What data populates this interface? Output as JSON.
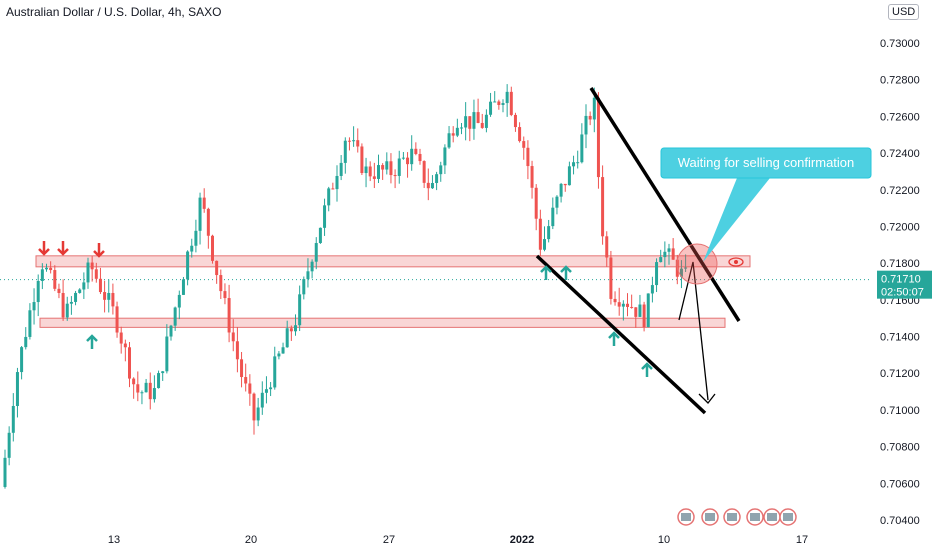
{
  "chart_data": {
    "type": "candlestick",
    "title": "Australian Dollar / U.S. Dollar, 4h, SAXO",
    "currency": "USD",
    "y_ticks": [
      "0.73000",
      "0.72800",
      "0.72600",
      "0.72400",
      "0.72200",
      "0.72000",
      "0.71800",
      "0.71600",
      "0.71400",
      "0.71200",
      "0.71000",
      "0.70800",
      "0.70600",
      "0.70400"
    ],
    "ylim": [
      0.7034,
      0.7318
    ],
    "x_ticks": [
      {
        "label": "13",
        "bold": false
      },
      {
        "label": "20",
        "bold": false
      },
      {
        "label": "27",
        "bold": false
      },
      {
        "label": "2022",
        "bold": true
      },
      {
        "label": "10",
        "bold": false
      },
      {
        "label": "17",
        "bold": false
      }
    ],
    "current_price": "0.71710",
    "countdown": "02:50:07",
    "resistance_zone": [
      0.7178,
      0.7184
    ],
    "support_zone": [
      0.7145,
      0.715
    ],
    "annotation": "Waiting for selling confirmation",
    "colors": {
      "up": "#26a69a",
      "down": "#ef5350",
      "zone_fill": "#f9d6d6",
      "zone_stroke": "#e57373",
      "callout": "#4dd0e1",
      "price_line": "#26a69a"
    }
  }
}
